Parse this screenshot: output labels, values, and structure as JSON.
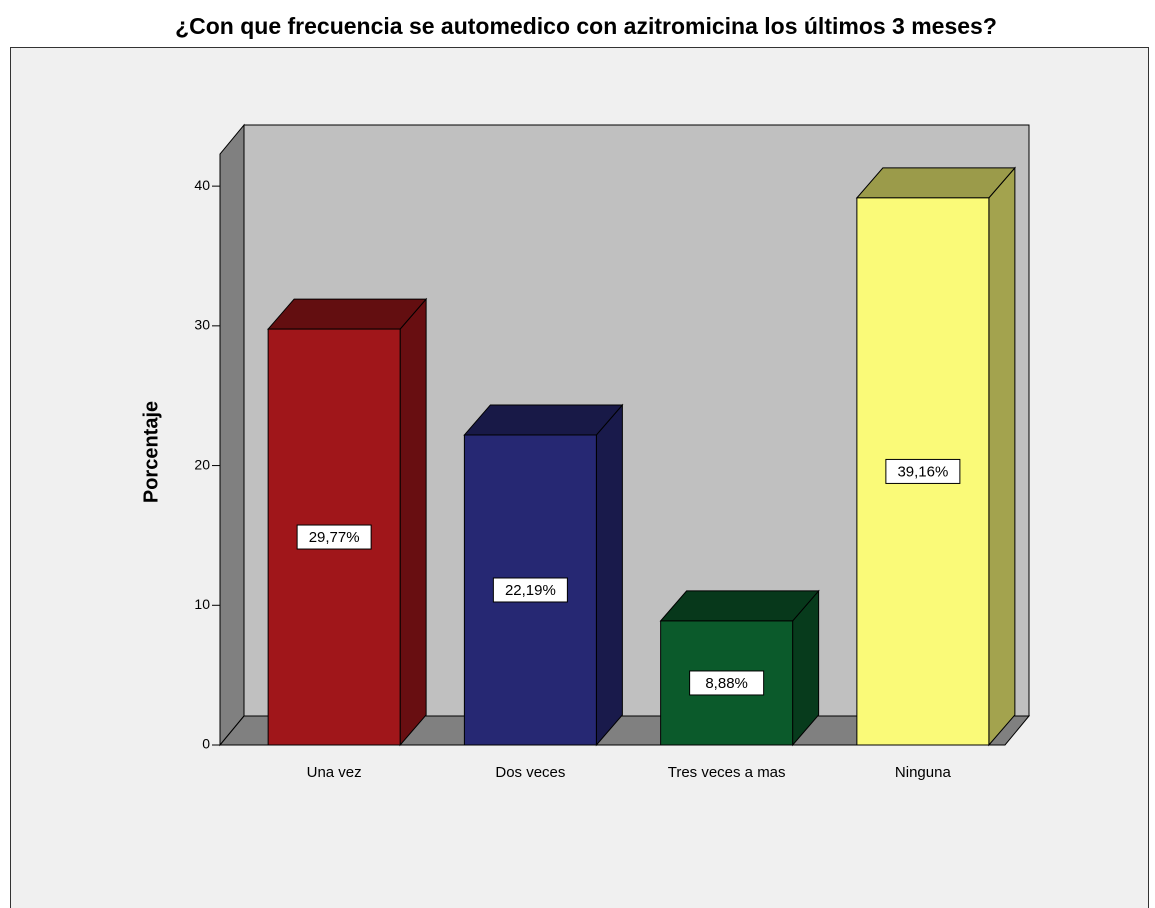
{
  "chart_data": {
    "type": "bar3d",
    "title": "¿Con que frecuencia se automedico con azitromicina los últimos 3 meses?",
    "ylabel": "Porcentaje",
    "categories": [
      "Una vez",
      "Dos veces",
      "Tres veces a mas",
      "Ninguna"
    ],
    "values": [
      29.77,
      22.19,
      8.88,
      39.16
    ],
    "value_labels": [
      "29,77%",
      "22,19%",
      "8,88%",
      "39,16%"
    ],
    "colors": [
      "#a0161a",
      "#262873",
      "#0b5a2b",
      "#fafa78"
    ],
    "ylim": [
      0,
      42.3
    ],
    "yticks": [
      0,
      10,
      20,
      30,
      40
    ]
  }
}
